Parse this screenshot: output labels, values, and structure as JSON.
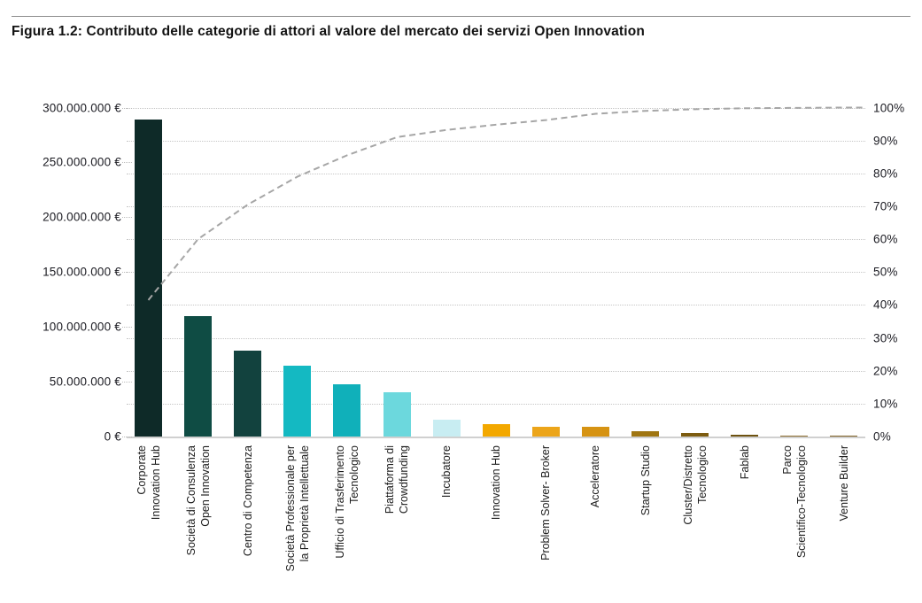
{
  "figure": {
    "title": "Figura 1.2: Contributo delle categorie di attori al valore del mercato dei servizi Open Innovation"
  },
  "chart_data": {
    "type": "bar",
    "subtype": "pareto (bars + dashed cumulative percentage line)",
    "title": "Figura 1.2: Contributo delle categorie di attori al valore del mercato dei servizi Open Innovation",
    "categories": [
      {
        "label": "Corporate Innovation Hub",
        "lines": [
          "Corporate",
          "Innovation Hub"
        ]
      },
      {
        "label": "Società di Consulenza Open Innovation",
        "lines": [
          "Società di Consulenza",
          "Open Innovation"
        ]
      },
      {
        "label": "Centro di Competenza",
        "lines": [
          "Centro di Competenza"
        ]
      },
      {
        "label": "Società Professionale per la Proprietà Intellettuale",
        "lines": [
          "Società Professionale per",
          "la Proprietà Intellettuale"
        ]
      },
      {
        "label": "Ufficio di Trasferimento Tecnologico",
        "lines": [
          "Ufficio di Trasferimento",
          "Tecnologico"
        ]
      },
      {
        "label": "Piattaforma di Crowdfunding",
        "lines": [
          "Piattaforma di",
          "Crowdfunding"
        ]
      },
      {
        "label": "Incubatore",
        "lines": [
          "Incubatore"
        ]
      },
      {
        "label": "Innovation Hub",
        "lines": [
          "Innovation Hub"
        ]
      },
      {
        "label": "Problem Solver- Broker",
        "lines": [
          "Problem Solver- Broker"
        ]
      },
      {
        "label": "Acceleratore",
        "lines": [
          "Acceleratore"
        ]
      },
      {
        "label": "Startup Studio",
        "lines": [
          "Startup Studio"
        ]
      },
      {
        "label": "Cluster/Distretto Tecnologico",
        "lines": [
          "Cluster/Distretto",
          "Tecnologico"
        ]
      },
      {
        "label": "Fablab",
        "lines": [
          "Fablab"
        ]
      },
      {
        "label": "Parco Scientifico-Tecnologico",
        "lines": [
          "Parco",
          "Scientifico-Tecnologico"
        ]
      },
      {
        "label": "Venture Builder",
        "lines": [
          "Venture Builder"
        ]
      }
    ],
    "values_eur_millions": [
      289,
      110,
      78,
      65,
      48,
      40,
      15.5,
      11.5,
      9,
      9,
      4.5,
      3,
      2,
      1,
      1
    ],
    "cumulative_percent": [
      41.5,
      60,
      70.5,
      79,
      85.5,
      91,
      93.2,
      94.8,
      96.2,
      98.1,
      99,
      99.5,
      99.8,
      99.9,
      100
    ],
    "bar_colors": [
      "#0e2a28",
      "#0f4c44",
      "#12423e",
      "#14b9c2",
      "#10b0ba",
      "#6cd8dd",
      "#c8edf2",
      "#f3a800",
      "#eca51a",
      "#d69313",
      "#a07612",
      "#7d5c10",
      "#6e5210",
      "#8a692a",
      "#7c5d20"
    ],
    "left_axis": {
      "unit": "€",
      "max_millions": 300,
      "ticks": [
        "300.000.000 €",
        "250.000.000 €",
        "200.000.000 €",
        "150.000.000 €",
        "100.000.000 €",
        "50.000.000 €",
        "0 €"
      ],
      "tick_values_millions": [
        300,
        250,
        200,
        150,
        100,
        50,
        0
      ]
    },
    "right_axis": {
      "unit": "%",
      "ticks": [
        "100%",
        "90%",
        "80%",
        "70%",
        "60%",
        "50%",
        "40%",
        "30%",
        "20%",
        "10%",
        "0%"
      ],
      "tick_values": [
        100,
        90,
        80,
        70,
        60,
        50,
        40,
        30,
        20,
        10,
        0
      ]
    },
    "line": {
      "style": "dashed",
      "color": "#a6a6a6"
    },
    "grid": "horizontal dotted gridlines at every 10%",
    "legend": "none",
    "ylim_left_millions": [
      0,
      300
    ],
    "ylim_right_percent": [
      0,
      100
    ]
  }
}
